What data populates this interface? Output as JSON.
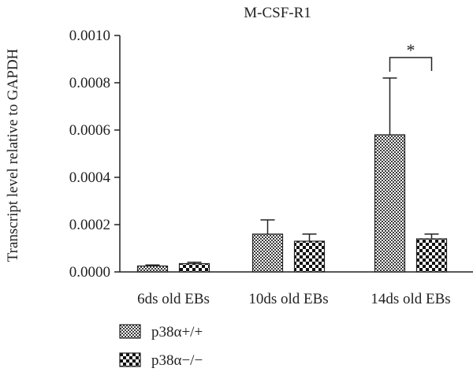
{
  "chart_data": {
    "type": "bar",
    "title": "M-CSF-R1",
    "ylabel": "Transcript level relative to GAPDH",
    "xlabel": "",
    "ylim": [
      0,
      0.001
    ],
    "yticks": [
      "0.0000",
      "0.0002",
      "0.0004",
      "0.0006",
      "0.0008",
      "0.0010"
    ],
    "categories": [
      "6ds old EBs",
      "10ds old EBs",
      "14ds old EBs"
    ],
    "series": [
      {
        "name": "p38α+/+",
        "values": [
          2.5e-05,
          0.00016,
          0.00058
        ],
        "errors": [
          4e-06,
          6e-05,
          0.00024
        ],
        "pattern": "fine"
      },
      {
        "name": "p38α−/−",
        "values": [
          3.5e-05,
          0.00013,
          0.00014
        ],
        "errors": [
          6e-06,
          3e-05,
          2e-05
        ],
        "pattern": "coarse"
      }
    ],
    "significance": {
      "category_index": 2,
      "label": "*"
    },
    "legend_position": "bottom-left",
    "grid": false
  }
}
